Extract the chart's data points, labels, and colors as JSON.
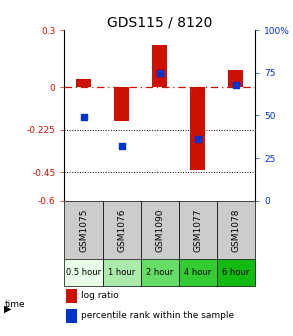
{
  "title": "GDS115 / 8120",
  "samples": [
    "GSM1075",
    "GSM1076",
    "GSM1090",
    "GSM1077",
    "GSM1078"
  ],
  "log_ratios": [
    0.04,
    -0.18,
    0.22,
    -0.44,
    0.09
  ],
  "percentile_ranks": [
    49,
    32,
    75,
    36,
    68
  ],
  "time_labels": [
    "0.5 hour",
    "1 hour",
    "2 hour",
    "4 hour",
    "6 hour"
  ],
  "time_colors": [
    "#e8ffe8",
    "#aaeaaa",
    "#66dd66",
    "#33cc33",
    "#11bb11"
  ],
  "ylim_left": [
    -0.6,
    0.3
  ],
  "ylim_right": [
    0,
    100
  ],
  "yticks_left": [
    0.3,
    0.0,
    -0.225,
    -0.45,
    -0.6
  ],
  "ytick_labels_left": [
    "0.3",
    "0",
    "-0.225",
    "-0.45",
    "-0.6"
  ],
  "yticks_right": [
    100,
    75,
    50,
    25,
    0
  ],
  "ytick_labels_right": [
    "100%",
    "75",
    "50",
    "25",
    "0"
  ],
  "hlines": [
    0.0,
    -0.225,
    -0.45
  ],
  "bar_color": "#cc1100",
  "scatter_color": "#0033cc",
  "bar_width": 0.4,
  "bg_color": "#ffffff",
  "sample_bg": "#cccccc"
}
